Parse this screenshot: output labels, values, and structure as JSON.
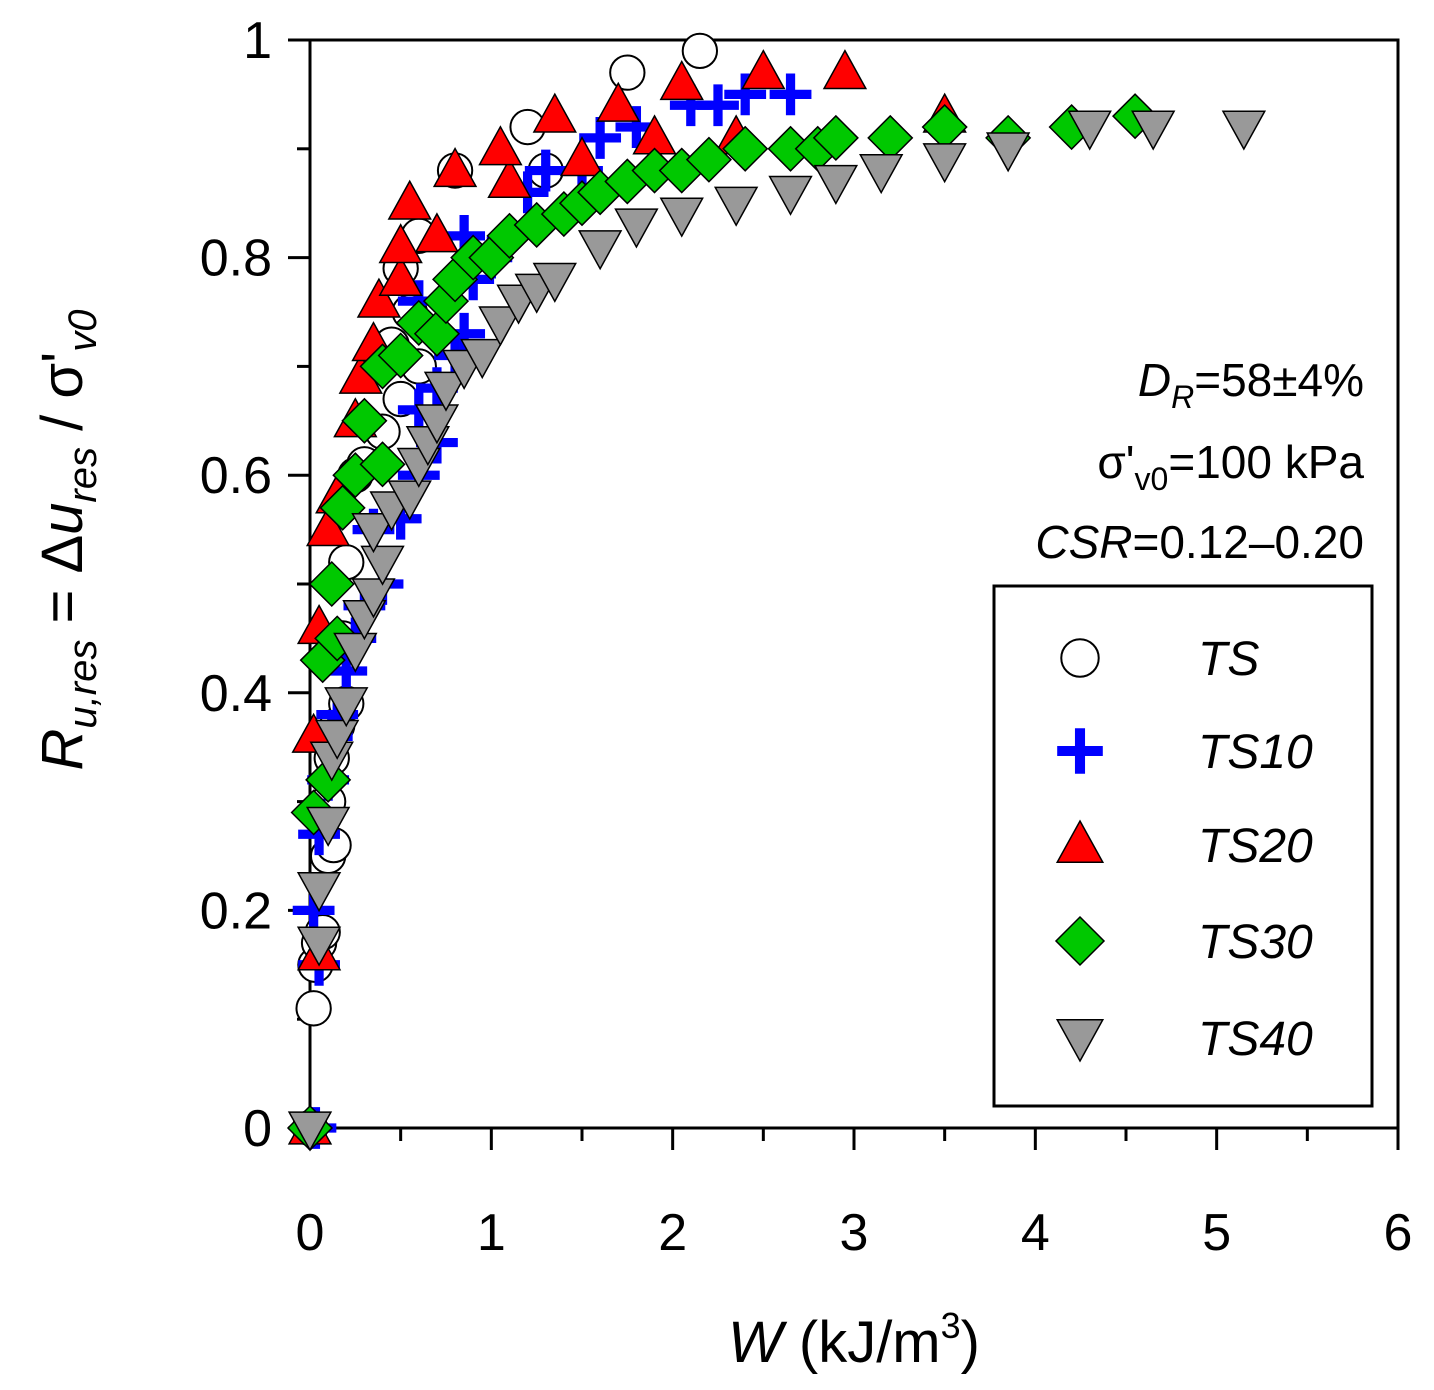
{
  "chart_data": {
    "type": "scatter",
    "title": "",
    "xlabel_var": "W",
    "xlabel_unit_open": " (kJ/m",
    "xlabel_sup": "3",
    "xlabel_close": ")",
    "ylabel_R": "R",
    "ylabel_R_sub": "u,res",
    "ylabel_eq": " = Δ",
    "ylabel_u": "u",
    "ylabel_u_sub": "res",
    "ylabel_slash": " / σ'",
    "ylabel_sig_sub": "v0",
    "xlim": [
      0,
      6
    ],
    "ylim": [
      0,
      1
    ],
    "xticks": [
      "0",
      "1",
      "2",
      "3",
      "4",
      "5",
      "6"
    ],
    "yticks": [
      "0",
      "0.2",
      "0.4",
      "0.6",
      "0.8",
      "1"
    ],
    "annotations": {
      "dr_var": "D",
      "dr_sub": "R",
      "dr_val": "=58±4%",
      "sig_main": "σ'",
      "sig_sub": "v0",
      "sig_val": "=100 kPa",
      "csr_var": "CSR",
      "csr_val": "=0.12–0.20"
    },
    "legend_position": "bottom-right",
    "series": [
      {
        "name": "TS",
        "marker": "circle",
        "fill": "#ffffff",
        "stroke": "#000000",
        "points": [
          [
            0.0,
            0.0
          ],
          [
            0.02,
            0.11
          ],
          [
            0.03,
            0.15
          ],
          [
            0.05,
            0.17
          ],
          [
            0.07,
            0.18
          ],
          [
            0.1,
            0.25
          ],
          [
            0.13,
            0.26
          ],
          [
            0.1,
            0.3
          ],
          [
            0.12,
            0.34
          ],
          [
            0.15,
            0.37
          ],
          [
            0.2,
            0.39
          ],
          [
            0.18,
            0.45
          ],
          [
            0.2,
            0.52
          ],
          [
            0.25,
            0.6
          ],
          [
            0.3,
            0.61
          ],
          [
            0.4,
            0.64
          ],
          [
            0.5,
            0.67
          ],
          [
            0.6,
            0.7
          ],
          [
            0.45,
            0.72
          ],
          [
            0.55,
            0.75
          ],
          [
            0.5,
            0.79
          ],
          [
            0.6,
            0.82
          ],
          [
            0.8,
            0.88
          ],
          [
            1.2,
            0.92
          ],
          [
            1.3,
            0.88
          ],
          [
            1.75,
            0.97
          ],
          [
            2.15,
            0.99
          ]
        ]
      },
      {
        "name": "TS10",
        "marker": "plus",
        "fill": "#0000ff",
        "stroke": "#0000ff",
        "points": [
          [
            0.03,
            0.0
          ],
          [
            0.05,
            0.15
          ],
          [
            0.02,
            0.2
          ],
          [
            0.05,
            0.27
          ],
          [
            0.1,
            0.32
          ],
          [
            0.12,
            0.36
          ],
          [
            0.15,
            0.38
          ],
          [
            0.2,
            0.42
          ],
          [
            0.25,
            0.45
          ],
          [
            0.3,
            0.48
          ],
          [
            0.4,
            0.5
          ],
          [
            0.35,
            0.55
          ],
          [
            0.5,
            0.56
          ],
          [
            0.6,
            0.6
          ],
          [
            0.7,
            0.63
          ],
          [
            0.6,
            0.66
          ],
          [
            0.7,
            0.68
          ],
          [
            0.8,
            0.71
          ],
          [
            0.85,
            0.73
          ],
          [
            0.6,
            0.76
          ],
          [
            0.9,
            0.78
          ],
          [
            1.0,
            0.8
          ],
          [
            0.85,
            0.82
          ],
          [
            1.2,
            0.86
          ],
          [
            1.3,
            0.88
          ],
          [
            1.5,
            0.88
          ],
          [
            1.6,
            0.91
          ],
          [
            1.8,
            0.92
          ],
          [
            2.1,
            0.94
          ],
          [
            2.25,
            0.94
          ],
          [
            2.4,
            0.95
          ],
          [
            2.65,
            0.95
          ]
        ]
      },
      {
        "name": "TS20",
        "marker": "triangle-up",
        "fill": "#ff0000",
        "stroke": "#000000",
        "points": [
          [
            0.0,
            0.0
          ],
          [
            0.05,
            0.16
          ],
          [
            0.02,
            0.36
          ],
          [
            0.05,
            0.46
          ],
          [
            0.1,
            0.55
          ],
          [
            0.15,
            0.58
          ],
          [
            0.25,
            0.65
          ],
          [
            0.28,
            0.69
          ],
          [
            0.35,
            0.72
          ],
          [
            0.38,
            0.76
          ],
          [
            0.5,
            0.78
          ],
          [
            0.5,
            0.81
          ],
          [
            0.7,
            0.82
          ],
          [
            0.55,
            0.85
          ],
          [
            0.8,
            0.88
          ],
          [
            1.1,
            0.87
          ],
          [
            1.05,
            0.9
          ],
          [
            1.35,
            0.93
          ],
          [
            1.5,
            0.89
          ],
          [
            1.7,
            0.94
          ],
          [
            1.9,
            0.91
          ],
          [
            2.05,
            0.96
          ],
          [
            2.5,
            0.97
          ],
          [
            2.35,
            0.91
          ],
          [
            2.95,
            0.97
          ],
          [
            3.5,
            0.93
          ]
        ]
      },
      {
        "name": "TS30",
        "marker": "diamond",
        "fill": "#00c800",
        "stroke": "#000000",
        "points": [
          [
            0.0,
            0.0
          ],
          [
            0.02,
            0.29
          ],
          [
            0.1,
            0.32
          ],
          [
            0.07,
            0.43
          ],
          [
            0.15,
            0.45
          ],
          [
            0.12,
            0.5
          ],
          [
            0.18,
            0.57
          ],
          [
            0.25,
            0.6
          ],
          [
            0.4,
            0.61
          ],
          [
            0.3,
            0.65
          ],
          [
            0.4,
            0.7
          ],
          [
            0.5,
            0.71
          ],
          [
            0.6,
            0.74
          ],
          [
            0.7,
            0.73
          ],
          [
            0.75,
            0.76
          ],
          [
            0.8,
            0.78
          ],
          [
            0.9,
            0.8
          ],
          [
            1.0,
            0.8
          ],
          [
            1.1,
            0.82
          ],
          [
            1.25,
            0.83
          ],
          [
            1.4,
            0.84
          ],
          [
            1.5,
            0.85
          ],
          [
            1.6,
            0.86
          ],
          [
            1.75,
            0.87
          ],
          [
            1.9,
            0.88
          ],
          [
            2.05,
            0.88
          ],
          [
            2.2,
            0.89
          ],
          [
            2.4,
            0.9
          ],
          [
            2.65,
            0.9
          ],
          [
            2.8,
            0.9
          ],
          [
            2.9,
            0.91
          ],
          [
            3.2,
            0.91
          ],
          [
            3.5,
            0.92
          ],
          [
            3.85,
            0.91
          ],
          [
            4.2,
            0.92
          ],
          [
            4.55,
            0.93
          ]
        ]
      },
      {
        "name": "TS40",
        "marker": "triangle-down",
        "fill": "#999999",
        "stroke": "#000000",
        "points": [
          [
            0.0,
            0.0
          ],
          [
            0.05,
            0.17
          ],
          [
            0.05,
            0.22
          ],
          [
            0.1,
            0.28
          ],
          [
            0.12,
            0.34
          ],
          [
            0.15,
            0.36
          ],
          [
            0.2,
            0.39
          ],
          [
            0.25,
            0.44
          ],
          [
            0.3,
            0.47
          ],
          [
            0.35,
            0.49
          ],
          [
            0.4,
            0.52
          ],
          [
            0.35,
            0.55
          ],
          [
            0.45,
            0.57
          ],
          [
            0.55,
            0.58
          ],
          [
            0.6,
            0.61
          ],
          [
            0.65,
            0.63
          ],
          [
            0.7,
            0.65
          ],
          [
            0.75,
            0.68
          ],
          [
            0.85,
            0.7
          ],
          [
            0.95,
            0.71
          ],
          [
            1.05,
            0.74
          ],
          [
            1.15,
            0.76
          ],
          [
            1.25,
            0.77
          ],
          [
            1.35,
            0.78
          ],
          [
            1.6,
            0.81
          ],
          [
            1.8,
            0.83
          ],
          [
            2.05,
            0.84
          ],
          [
            2.35,
            0.85
          ],
          [
            2.65,
            0.86
          ],
          [
            2.9,
            0.87
          ],
          [
            3.15,
            0.88
          ],
          [
            3.5,
            0.89
          ],
          [
            3.85,
            0.9
          ],
          [
            4.3,
            0.92
          ],
          [
            4.65,
            0.92
          ],
          [
            5.15,
            0.92
          ]
        ]
      }
    ]
  }
}
